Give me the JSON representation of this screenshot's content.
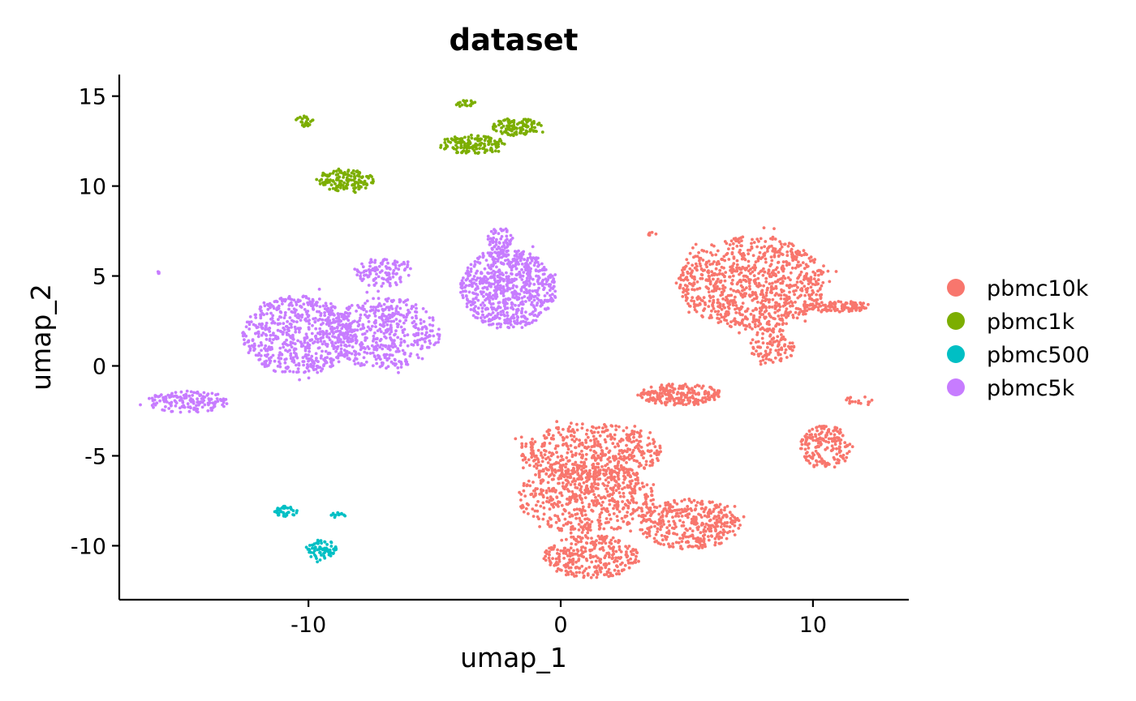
{
  "chart_data": {
    "type": "scatter",
    "title": "dataset",
    "xlabel": "umap_1",
    "ylabel": "umap_2",
    "xlim": [
      -17.5,
      13.8
    ],
    "ylim": [
      -13.0,
      16.2
    ],
    "x_ticks": [
      -10,
      0,
      10
    ],
    "x_tick_labels": [
      "-10",
      "0",
      "10"
    ],
    "y_ticks": [
      -10,
      -5,
      0,
      5,
      10,
      15
    ],
    "y_tick_labels": [
      "-10",
      "-5",
      "0",
      "5",
      "10",
      "15"
    ],
    "grid": false,
    "legend_position": "right",
    "series": [
      {
        "name": "pbmc10k",
        "color": "#F8766D",
        "clusters": [
          {
            "cx": 7.6,
            "cy": 4.6,
            "rx": 2.9,
            "ry": 2.6,
            "n": 900
          },
          {
            "cx": 11.0,
            "cy": 3.3,
            "rx": 1.3,
            "ry": 0.3,
            "n": 110
          },
          {
            "cx": 8.4,
            "cy": 1.1,
            "rx": 0.9,
            "ry": 1.0,
            "n": 110
          },
          {
            "cx": 1.2,
            "cy": -4.8,
            "rx": 2.8,
            "ry": 1.6,
            "n": 480
          },
          {
            "cx": 1.0,
            "cy": -7.3,
            "rx": 2.7,
            "ry": 2.0,
            "n": 600
          },
          {
            "cx": 1.2,
            "cy": -10.6,
            "rx": 1.9,
            "ry": 1.2,
            "n": 300
          },
          {
            "cx": 5.1,
            "cy": -8.8,
            "rx": 2.0,
            "ry": 1.4,
            "n": 380
          },
          {
            "cx": 4.7,
            "cy": -1.6,
            "rx": 1.7,
            "ry": 0.6,
            "n": 220
          },
          {
            "cx": 10.5,
            "cy": -4.5,
            "rx": 1.0,
            "ry": 1.2,
            "n": 180
          },
          {
            "cx": 11.8,
            "cy": -2.0,
            "rx": 0.6,
            "ry": 0.3,
            "n": 16
          },
          {
            "cx": 3.6,
            "cy": 7.3,
            "rx": 0.2,
            "ry": 0.15,
            "n": 6
          }
        ]
      },
      {
        "name": "pbmc1k",
        "color": "#7CAE00",
        "clusters": [
          {
            "cx": -10.2,
            "cy": 13.6,
            "rx": 0.4,
            "ry": 0.3,
            "n": 28
          },
          {
            "cx": -8.5,
            "cy": 10.3,
            "rx": 1.1,
            "ry": 0.6,
            "n": 150
          },
          {
            "cx": -3.5,
            "cy": 12.3,
            "rx": 1.4,
            "ry": 0.5,
            "n": 150
          },
          {
            "cx": -1.7,
            "cy": 13.3,
            "rx": 1.0,
            "ry": 0.5,
            "n": 110
          },
          {
            "cx": -3.8,
            "cy": 14.6,
            "rx": 0.4,
            "ry": 0.2,
            "n": 22
          }
        ]
      },
      {
        "name": "pbmc500",
        "color": "#00BFC4",
        "clusters": [
          {
            "cx": -10.9,
            "cy": -8.1,
            "rx": 0.45,
            "ry": 0.3,
            "n": 42
          },
          {
            "cx": -9.5,
            "cy": -10.2,
            "rx": 0.6,
            "ry": 0.55,
            "n": 75
          },
          {
            "cx": -8.8,
            "cy": -8.3,
            "rx": 0.3,
            "ry": 0.15,
            "n": 12
          }
        ]
      },
      {
        "name": "pbmc5k",
        "color": "#C77CFF",
        "clusters": [
          {
            "cx": -10.4,
            "cy": 1.7,
            "rx": 2.2,
            "ry": 2.2,
            "n": 620
          },
          {
            "cx": -7.0,
            "cy": 1.8,
            "rx": 2.2,
            "ry": 2.0,
            "n": 480
          },
          {
            "cx": -7.0,
            "cy": 5.2,
            "rx": 1.1,
            "ry": 0.8,
            "n": 120
          },
          {
            "cx": -2.1,
            "cy": 4.3,
            "rx": 1.9,
            "ry": 2.2,
            "n": 720
          },
          {
            "cx": -2.4,
            "cy": 7.0,
            "rx": 0.5,
            "ry": 0.7,
            "n": 60
          },
          {
            "cx": -14.8,
            "cy": -2.0,
            "rx": 1.6,
            "ry": 0.6,
            "n": 160
          },
          {
            "cx": -16.0,
            "cy": 5.2,
            "rx": 0.1,
            "ry": 0.1,
            "n": 4
          }
        ]
      }
    ]
  }
}
